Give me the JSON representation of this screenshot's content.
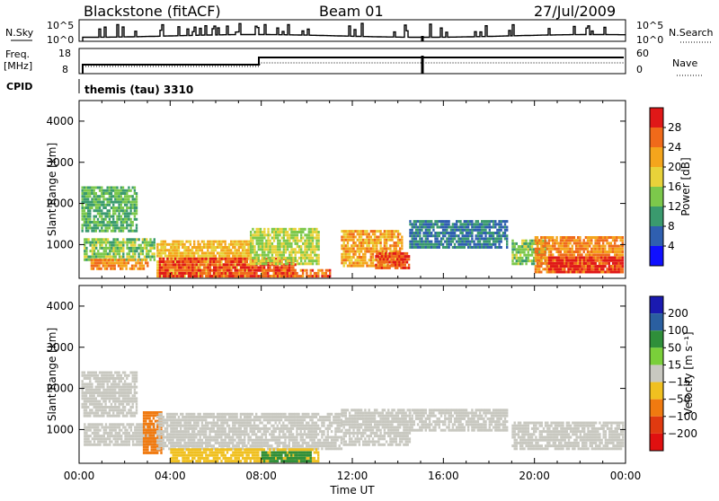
{
  "header": {
    "station": "Blackstone (fitACF)",
    "beam": "Beam 01",
    "date": "27/Jul/2009"
  },
  "params": {
    "nsky_label": "N.Sky",
    "nsky_top": "10^5",
    "nsky_bottom": "10^0",
    "nsearch_label": "N.Search",
    "nsearch_top": "10^5",
    "nsearch_bottom": "10^0",
    "freq_label_1": "Freq.",
    "freq_label_2": "[MHz]",
    "freq_top": "18",
    "freq_bottom": "8",
    "nave_label": "Nave",
    "nave_top": "60",
    "nave_bottom": "0",
    "cpid_label": "CPID",
    "cpid_value": "themis (tau) 3310"
  },
  "power_cbar": {
    "title": "Power [dB]",
    "ticks": [
      "28",
      "24",
      "20",
      "16",
      "12",
      "8",
      "4"
    ]
  },
  "velocity_cbar": {
    "title": "Velocity [m s⁻¹]",
    "ticks": [
      "200",
      "100",
      "50",
      "15",
      "−15",
      "−50",
      "−100",
      "−200"
    ]
  },
  "colors": {
    "power": [
      "#1010ff",
      "#2f5fb0",
      "#3a9a6e",
      "#7cc84b",
      "#e8d23a",
      "#f4a51c",
      "#f06a1a",
      "#e01818"
    ],
    "velocity": [
      "#1a1ab0",
      "#2a5fa0",
      "#2f8f3a",
      "#7acf3a",
      "#c8c8c0",
      "#f0c020",
      "#f07a10",
      "#e03a10",
      "#e01010"
    ]
  },
  "chart_data": [
    {
      "type": "heatmap",
      "panel": "power",
      "xlabel": "",
      "ylabel": "Slant Range [km]",
      "x_ticks": [
        "00:00",
        "04:00",
        "08:00",
        "12:00",
        "16:00",
        "20:00",
        "00:00"
      ],
      "xlim": [
        0,
        24
      ],
      "ylim": [
        180,
        4500
      ],
      "y_ticks": [
        1000,
        2000,
        3000,
        4000
      ],
      "colorbar": {
        "label": "Power [dB]",
        "range": [
          0,
          32
        ],
        "ticks": [
          4,
          8,
          12,
          16,
          20,
          24,
          28
        ]
      },
      "regions": [
        {
          "t": [
            0.1,
            2.5
          ],
          "r": [
            1300,
            2400
          ],
          "v": 12
        },
        {
          "t": [
            0.2,
            3.3
          ],
          "r": [
            600,
            1150
          ],
          "v": 14
        },
        {
          "t": [
            0.5,
            3.0
          ],
          "r": [
            380,
            600
          ],
          "v": 24
        },
        {
          "t": [
            3.4,
            7.5
          ],
          "r": [
            200,
            1100
          ],
          "v": 20
        },
        {
          "t": [
            3.5,
            9.5
          ],
          "r": [
            200,
            650
          ],
          "v": 28
        },
        {
          "t": [
            7.5,
            10.5
          ],
          "r": [
            500,
            1350
          ],
          "v": 16
        },
        {
          "t": [
            8.0,
            11.0
          ],
          "r": [
            200,
            350
          ],
          "v": 26
        },
        {
          "t": [
            11.5,
            14.2
          ],
          "r": [
            450,
            1300
          ],
          "v": 22
        },
        {
          "t": [
            13.0,
            14.5
          ],
          "r": [
            400,
            800
          ],
          "v": 28
        },
        {
          "t": [
            14.5,
            18.8
          ],
          "r": [
            900,
            1600
          ],
          "v": 8
        },
        {
          "t": [
            19.0,
            20.5
          ],
          "r": [
            500,
            1100
          ],
          "v": 14
        },
        {
          "t": [
            20.0,
            23.9
          ],
          "r": [
            300,
            1150
          ],
          "v": 24
        },
        {
          "t": [
            20.6,
            23.9
          ],
          "r": [
            300,
            700
          ],
          "v": 30
        }
      ]
    },
    {
      "type": "heatmap",
      "panel": "velocity",
      "xlabel": "Time UT",
      "ylabel": "Slant Range [km]",
      "x_ticks": [
        "00:00",
        "04:00",
        "08:00",
        "12:00",
        "16:00",
        "20:00",
        "00:00"
      ],
      "xlim": [
        0,
        24
      ],
      "ylim": [
        180,
        4500
      ],
      "y_ticks": [
        1000,
        2000,
        3000,
        4000
      ],
      "colorbar": {
        "label": "Velocity [m s⁻¹]",
        "range": [
          -250,
          250
        ],
        "ticks": [
          200,
          100,
          50,
          15,
          -15,
          -50,
          -100,
          -200
        ]
      },
      "regions": [
        {
          "t": [
            0.1,
            2.5
          ],
          "r": [
            1300,
            2400
          ],
          "v": 0
        },
        {
          "t": [
            0.2,
            3.3
          ],
          "r": [
            600,
            1150
          ],
          "v": 0
        },
        {
          "t": [
            2.8,
            3.6
          ],
          "r": [
            400,
            1400
          ],
          "v": -60
        },
        {
          "t": [
            3.4,
            11.5
          ],
          "r": [
            500,
            1400
          ],
          "v": 0
        },
        {
          "t": [
            4.0,
            10.5
          ],
          "r": [
            200,
            500
          ],
          "v": -40
        },
        {
          "t": [
            8.0,
            10.2
          ],
          "r": [
            200,
            420
          ],
          "v": 60
        },
        {
          "t": [
            11.5,
            14.5
          ],
          "r": [
            600,
            1500
          ],
          "v": 0
        },
        {
          "t": [
            14.5,
            18.8
          ],
          "r": [
            950,
            1500
          ],
          "v": 0
        },
        {
          "t": [
            19.0,
            23.9
          ],
          "r": [
            500,
            1150
          ],
          "v": 0
        }
      ]
    }
  ]
}
